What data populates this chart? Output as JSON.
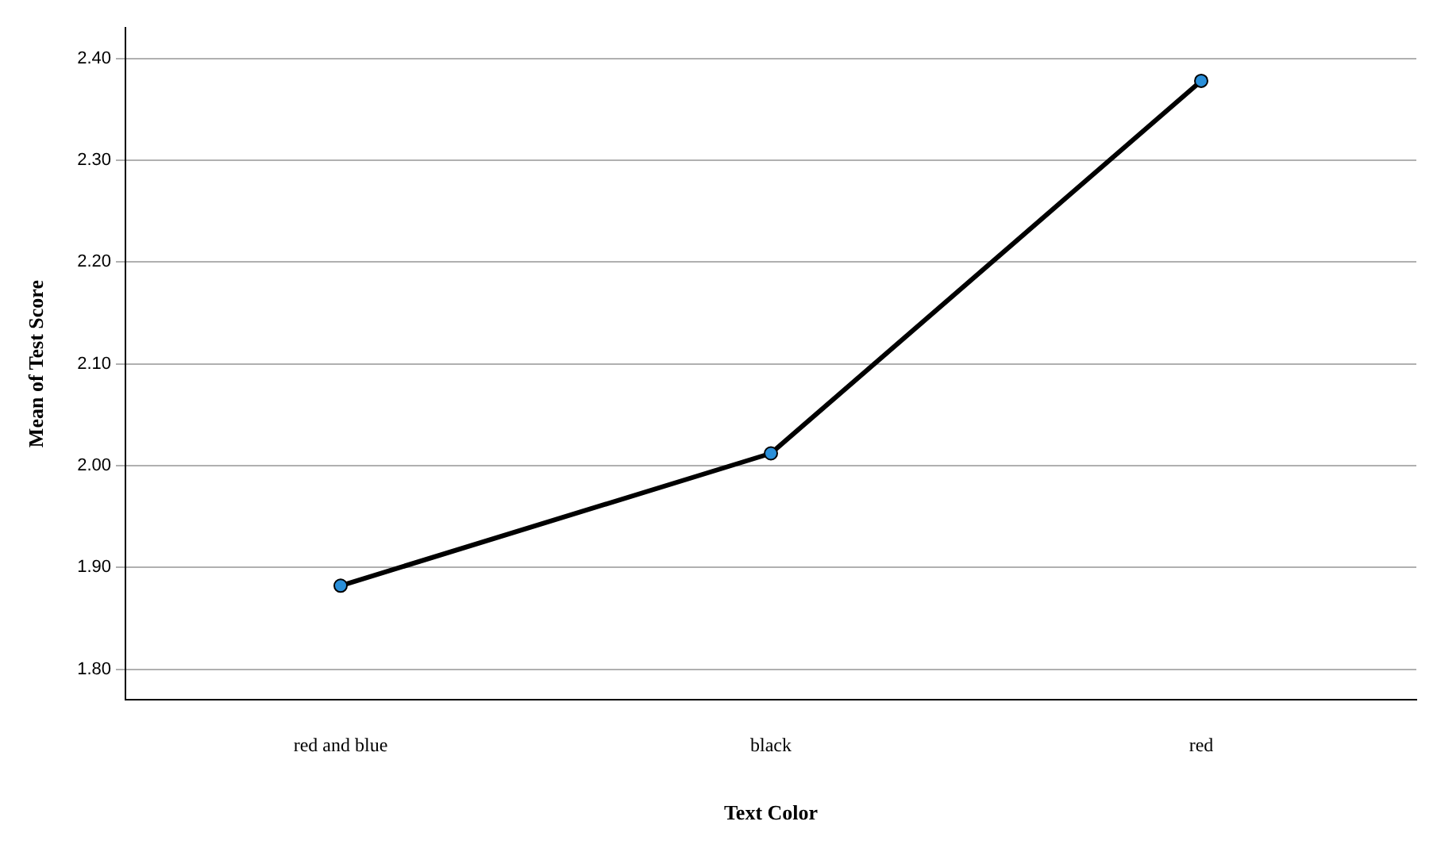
{
  "chart_data": {
    "type": "line",
    "xlabel": "Text Color",
    "ylabel": "Mean of Test Score",
    "categories": [
      "red and blue",
      "black",
      "red"
    ],
    "series": [
      {
        "color": "#000000",
        "values": [
          1.882,
          2.012,
          2.378
        ]
      }
    ],
    "ylim": [
      1.77,
      2.43
    ],
    "yticks": [
      {
        "value": 1.8,
        "label": "1.80"
      },
      {
        "value": 1.9,
        "label": "1.90"
      },
      {
        "value": 2.0,
        "label": "2.00"
      },
      {
        "value": 2.1,
        "label": "2.10"
      },
      {
        "value": 2.2,
        "label": "2.20"
      },
      {
        "value": 2.3,
        "label": "2.30"
      },
      {
        "value": 2.4,
        "label": "2.40"
      }
    ],
    "grid": "y",
    "legend": false,
    "marker": "circle",
    "line_style": "solid"
  }
}
